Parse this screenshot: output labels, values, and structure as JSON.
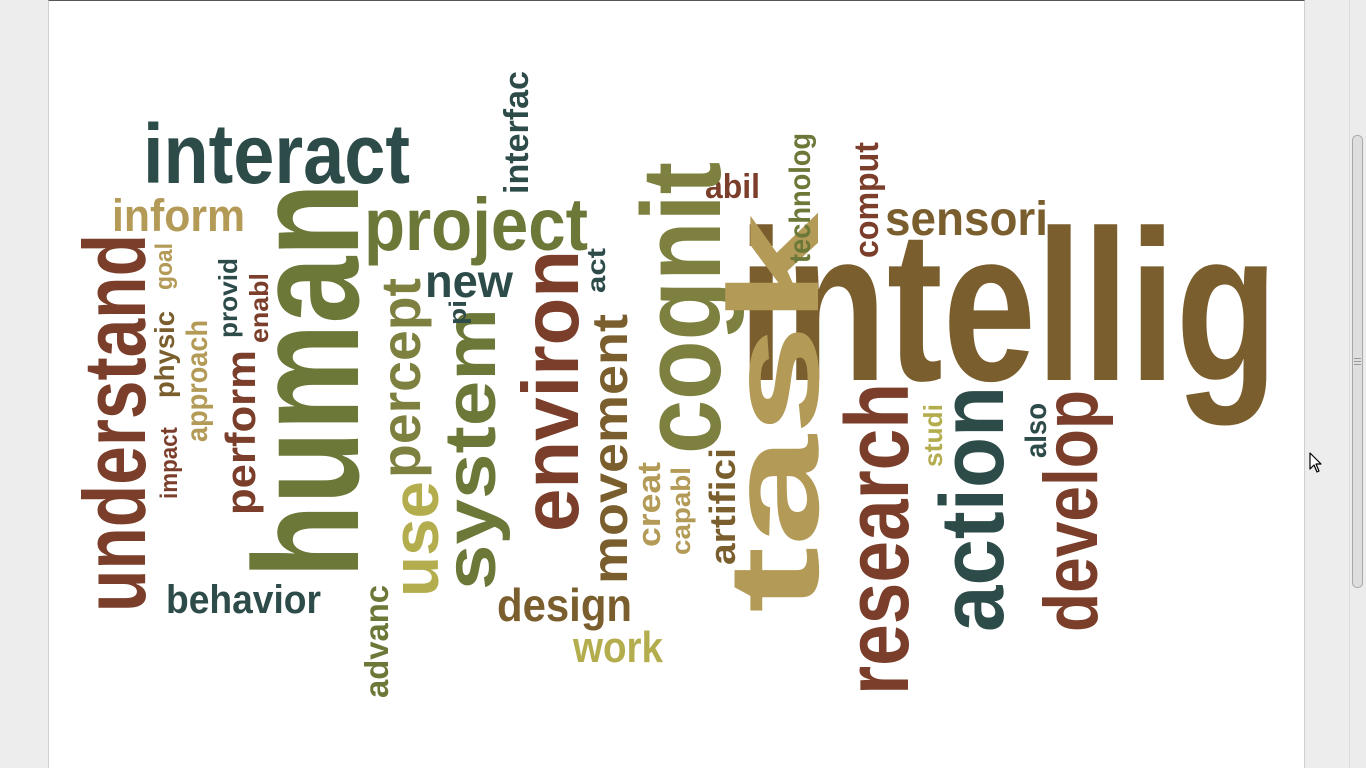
{
  "colors": {
    "dark_teal": "#2d4b49",
    "olive": "#6b7838",
    "olive_brown": "#7a5e2d",
    "rust": "#7a3e2a",
    "khaki": "#b39a57",
    "yellow_olive": "#b3ad4e",
    "mid_olive": "#7d803f"
  },
  "cloud": {
    "words": [
      {
        "text": "intellig",
        "color": "olive_brown"
      },
      {
        "text": "human",
        "color": "olive"
      },
      {
        "text": "interact",
        "color": "dark_teal"
      },
      {
        "text": "project",
        "color": "olive"
      },
      {
        "text": "cognit",
        "color": "mid_olive"
      },
      {
        "text": "task",
        "color": "khaki"
      },
      {
        "text": "research",
        "color": "rust"
      },
      {
        "text": "action",
        "color": "dark_teal"
      },
      {
        "text": "develop",
        "color": "rust"
      },
      {
        "text": "understand",
        "color": "rust"
      },
      {
        "text": "environ",
        "color": "rust"
      },
      {
        "text": "system",
        "color": "olive"
      },
      {
        "text": "use",
        "color": "yellow_olive"
      },
      {
        "text": "percept",
        "color": "mid_olive"
      },
      {
        "text": "movement",
        "color": "olive_brown"
      },
      {
        "text": "sensori",
        "color": "olive_brown"
      },
      {
        "text": "inform",
        "color": "khaki"
      },
      {
        "text": "behavior",
        "color": "dark_teal"
      },
      {
        "text": "design",
        "color": "olive_brown"
      },
      {
        "text": "new",
        "color": "dark_teal"
      },
      {
        "text": "work",
        "color": "yellow_olive"
      },
      {
        "text": "perform",
        "color": "rust"
      },
      {
        "text": "interfac",
        "color": "dark_teal"
      },
      {
        "text": "abil",
        "color": "rust"
      },
      {
        "text": "comput",
        "color": "rust"
      },
      {
        "text": "technolog",
        "color": "olive"
      },
      {
        "text": "artifici",
        "color": "olive_brown"
      },
      {
        "text": "creat",
        "color": "khaki"
      },
      {
        "text": "capabl",
        "color": "khaki"
      },
      {
        "text": "advanc",
        "color": "olive"
      },
      {
        "text": "approach",
        "color": "khaki"
      },
      {
        "text": "physic",
        "color": "olive_brown"
      },
      {
        "text": "impact",
        "color": "rust"
      },
      {
        "text": "goal",
        "color": "khaki"
      },
      {
        "text": "provid",
        "color": "dark_teal"
      },
      {
        "text": "enabl",
        "color": "rust"
      },
      {
        "text": "act",
        "color": "dark_teal"
      },
      {
        "text": "pi",
        "color": "dark_teal"
      },
      {
        "text": "studi",
        "color": "yellow_olive"
      },
      {
        "text": "also",
        "color": "dark_teal"
      }
    ]
  }
}
